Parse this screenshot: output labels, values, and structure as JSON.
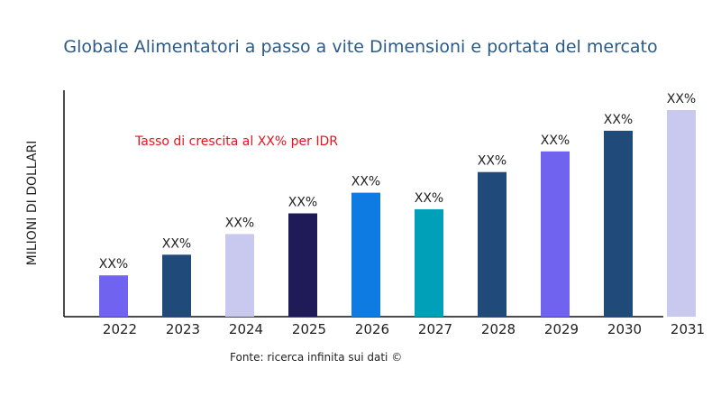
{
  "chart_data": {
    "type": "bar",
    "title": "Globale Alimentatori a passo a vite Dimensioni e portata del mercato",
    "xlabel": "",
    "ylabel": "MILIONI DI DOLLARI",
    "categories": [
      "2022",
      "2023",
      "2024",
      "2025",
      "2026",
      "2027",
      "2028",
      "2029",
      "2030",
      "2031"
    ],
    "values": [
      20,
      30,
      40,
      50,
      60,
      52,
      70,
      80,
      90,
      100
    ],
    "data_labels": [
      "XX%",
      "XX%",
      "XX%",
      "XX%",
      "XX%",
      "XX%",
      "XX%",
      "XX%",
      "XX%",
      "XX%"
    ],
    "colors": [
      "#7063ef",
      "#1f4a7a",
      "#c9c9ef",
      "#1f1a58",
      "#0e7be3",
      "#00a0b8",
      "#1f4a7a",
      "#7063ef",
      "#1f4a7a",
      "#c9c9ef"
    ],
    "ylim": [
      0,
      100
    ],
    "grid": false,
    "annotation": "Tasso di crescita al XX% per IDR",
    "source": "Fonte: ricerca infinita sui dati ©"
  }
}
